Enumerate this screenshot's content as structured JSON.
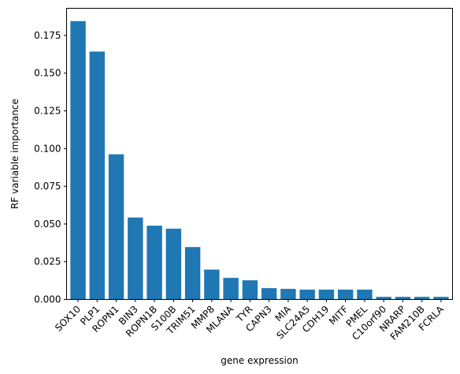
{
  "chart_data": {
    "type": "bar",
    "title": "",
    "xlabel": "gene expression",
    "ylabel": "RF variable importance",
    "categories": [
      "SOX10",
      "PLP1",
      "ROPN1",
      "BIN3",
      "ROPN1B",
      "S100B",
      "TRIM51",
      "MMP8",
      "MLANA",
      "TYR",
      "CAPN3",
      "MIA",
      "SLC24A5",
      "CDH19",
      "MITF",
      "PMEL",
      "C10orf90",
      "NRARP",
      "FAM210B",
      "FCRLA"
    ],
    "values": [
      0.1845,
      0.1643,
      0.0962,
      0.0543,
      0.0489,
      0.0469,
      0.0347,
      0.0198,
      0.0143,
      0.0127,
      0.0075,
      0.007,
      0.0065,
      0.0065,
      0.0065,
      0.0065,
      0.0017,
      0.0017,
      0.0017,
      0.0017
    ],
    "ylim": [
      0,
      0.193
    ],
    "yticks": [
      "0.000",
      "0.025",
      "0.050",
      "0.075",
      "0.100",
      "0.125",
      "0.150",
      "0.175"
    ],
    "bar_color": "#1f77b4",
    "grid": false,
    "legend": false
  }
}
